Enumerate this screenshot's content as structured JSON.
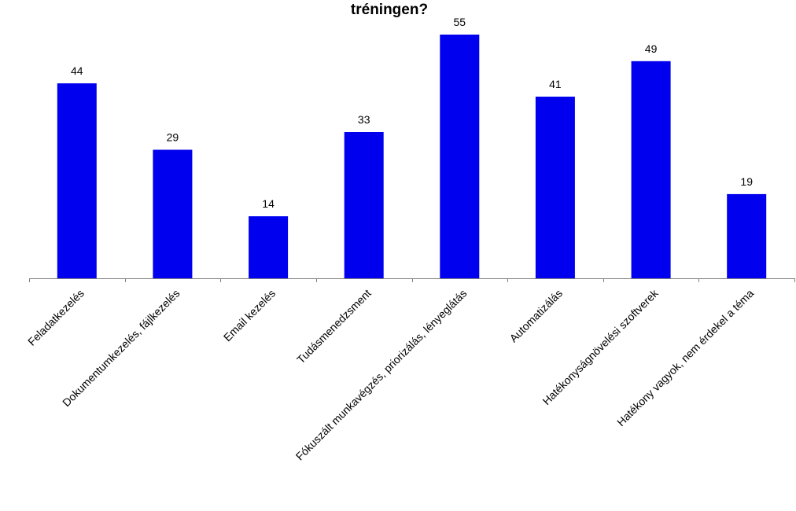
{
  "chart_data": {
    "type": "bar",
    "title": "tréningen?",
    "xlabel": "",
    "ylabel": "",
    "categories": [
      "Feladatkezelés",
      "Dokumentumkezelés, fájlkezelés",
      "Email kezelés",
      "Tudásmenedzsment",
      "Fókuszált munkavégzés, priorizálás, lényeglátás",
      "Automatizálás",
      "Hatékonyságnövelési szoftverek",
      "Hatékony vagyok, nem érdekel a téma"
    ],
    "values": [
      44,
      29,
      14,
      33,
      55,
      41,
      49,
      19
    ],
    "ylim": [
      0,
      55
    ],
    "grid": false,
    "legend": "none",
    "bar_color": "#0000ee",
    "axis_color": "#808080"
  }
}
